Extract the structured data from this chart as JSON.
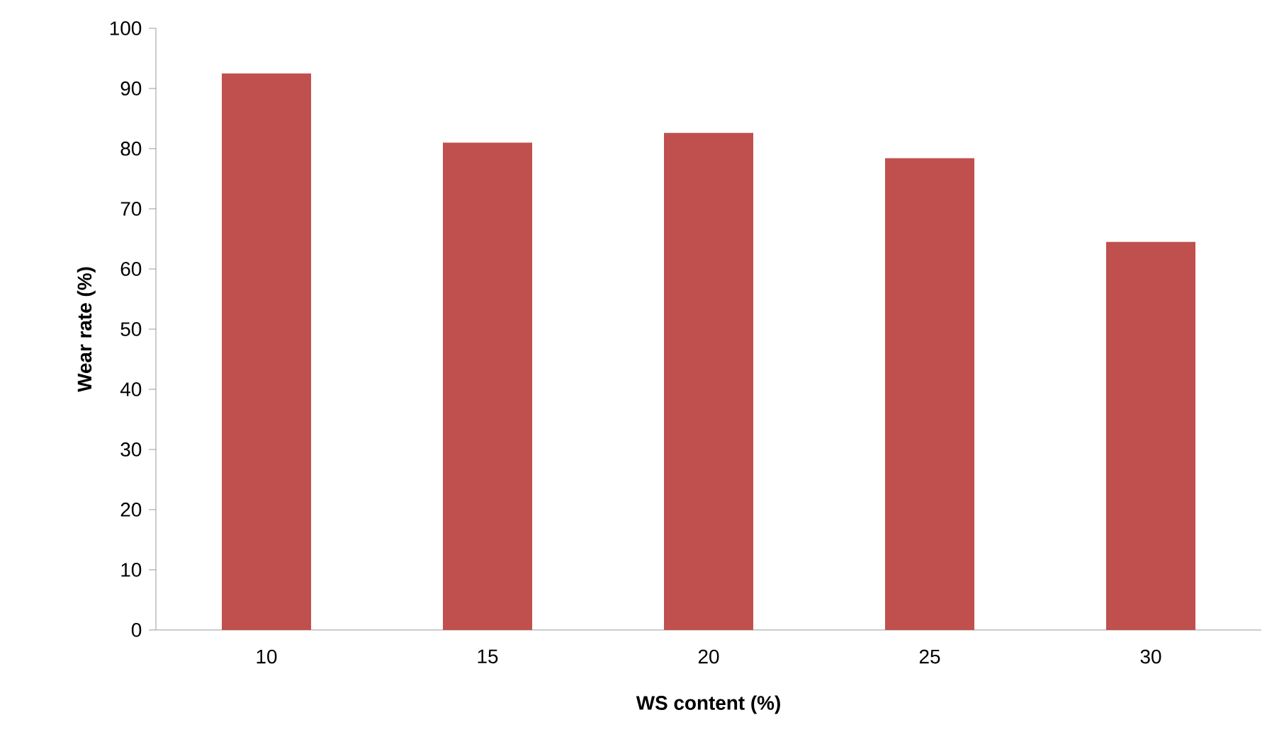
{
  "chart_data": {
    "type": "bar",
    "xlabel": "WS content (%)",
    "ylabel": "Wear rate (%)",
    "categories": [
      "10",
      "15",
      "20",
      "25",
      "30"
    ],
    "values": [
      92.5,
      81,
      82.6,
      78.4,
      64.5
    ],
    "color": "#c0504d",
    "ylim": [
      0,
      100
    ],
    "yticks": [
      0,
      10,
      20,
      30,
      40,
      50,
      60,
      70,
      80,
      90,
      100
    ],
    "grid": false
  }
}
